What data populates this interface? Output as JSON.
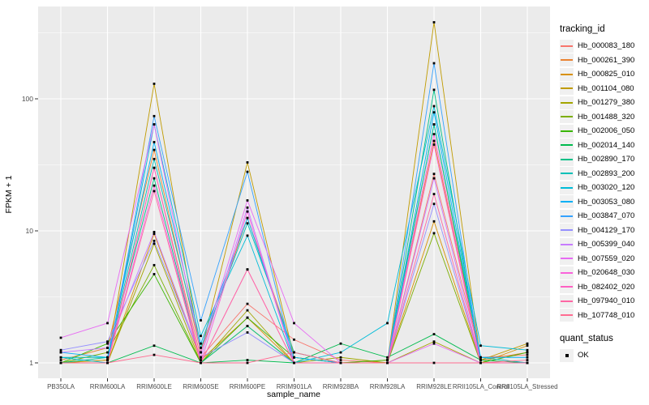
{
  "chart_data": {
    "type": "line",
    "title": "",
    "xlabel": "sample_name",
    "ylabel": "FPKM + 1",
    "y_scale": "log10",
    "y_ticks": [
      "1",
      "10",
      "100"
    ],
    "y_tick_values": [
      1,
      10,
      100
    ],
    "y_minor_values": [
      3.162,
      31.62,
      316.2
    ],
    "ylim": [
      0.78,
      450
    ],
    "grid": true,
    "panel_bg": "#EBEBEB",
    "grid_color": "#FFFFFF",
    "axis_text_color": "#4D4D4D",
    "tick_mark_color": "#333333",
    "point_marker": "black-square",
    "legend_position": "right",
    "categories": [
      "PB350LA",
      "RRIM600LA",
      "RRIM600LE",
      "RRIM600SE",
      "RRIM600PE",
      "RRIM901LA",
      "RRIM928BA",
      "RRIM928LA",
      "RRIM928LE",
      "RRII105LA_Control",
      "RRII105LA_Stressed"
    ],
    "series": [
      {
        "name": "Hb_000083_180",
        "color": "#F8766D",
        "values": [
          1.0,
          1.05,
          30,
          1.1,
          2.8,
          1.5,
          1.05,
          1.0,
          27,
          1.1,
          1.15
        ]
      },
      {
        "name": "Hb_000261_390",
        "color": "#EA8331",
        "values": [
          1.05,
          1.3,
          41,
          1.2,
          12.5,
          1.2,
          1.0,
          1.05,
          48,
          1.05,
          1.2
        ]
      },
      {
        "name": "Hb_000825_010",
        "color": "#D89000",
        "values": [
          1.0,
          1.0,
          9.5,
          1.05,
          2.2,
          1.0,
          1.0,
          1.0,
          11.8,
          1.0,
          1.35
        ]
      },
      {
        "name": "Hb_001104_080",
        "color": "#C09B00",
        "values": [
          1.0,
          1.05,
          130,
          1.2,
          33,
          1.1,
          1.0,
          1.0,
          380,
          1.05,
          1.4
        ]
      },
      {
        "name": "Hb_001279_380",
        "color": "#A3A500",
        "values": [
          1.0,
          1.0,
          8.0,
          1.0,
          2.5,
          1.0,
          1.1,
          1.0,
          1.45,
          1.0,
          1.0
        ]
      },
      {
        "name": "Hb_001488_320",
        "color": "#7CAE00",
        "values": [
          1.0,
          1.2,
          5.5,
          1.0,
          1.9,
          1.0,
          1.0,
          1.0,
          9.6,
          1.0,
          1.0
        ]
      },
      {
        "name": "Hb_002006_050",
        "color": "#39B600",
        "values": [
          1.0,
          1.4,
          4.7,
          1.0,
          2.2,
          1.1,
          1.0,
          1.05,
          64,
          1.0,
          1.2
        ]
      },
      {
        "name": "Hb_002014_140",
        "color": "#00BB4E",
        "values": [
          1.0,
          1.0,
          1.35,
          1.0,
          1.05,
          1.0,
          1.4,
          1.1,
          1.65,
          1.05,
          1.0
        ]
      },
      {
        "name": "Hb_002890_170",
        "color": "#00C087",
        "values": [
          1.0,
          1.1,
          25,
          1.0,
          1.9,
          1.0,
          1.0,
          1.0,
          117,
          1.0,
          1.0
        ]
      },
      {
        "name": "Hb_002893_200",
        "color": "#00C0B8",
        "values": [
          1.1,
          1.1,
          35,
          1.3,
          11.4,
          1.2,
          1.0,
          1.0,
          64,
          1.1,
          1.0
        ]
      },
      {
        "name": "Hb_003020_120",
        "color": "#00BCD8",
        "values": [
          1.1,
          1.0,
          64,
          1.6,
          9.2,
          1.0,
          1.2,
          2.0,
          88,
          1.35,
          1.25
        ]
      },
      {
        "name": "Hb_003053_080",
        "color": "#00B0F6",
        "values": [
          1.2,
          1.1,
          47,
          1.4,
          12.5,
          1.1,
          1.0,
          1.0,
          79,
          1.1,
          1.1
        ]
      },
      {
        "name": "Hb_003847_070",
        "color": "#35A2FF",
        "values": [
          1.0,
          1.0,
          74,
          2.1,
          28,
          1.0,
          1.0,
          1.0,
          186,
          1.0,
          1.0
        ]
      },
      {
        "name": "Hb_004129_170",
        "color": "#9590FF",
        "values": [
          1.25,
          1.45,
          8.4,
          1.1,
          1.7,
          1.0,
          1.0,
          1.0,
          16,
          1.0,
          1.0
        ]
      },
      {
        "name": "Hb_005399_040",
        "color": "#C77CFF",
        "values": [
          1.2,
          1.3,
          9.8,
          1.1,
          15,
          1.0,
          1.0,
          1.0,
          25,
          1.0,
          1.0
        ]
      },
      {
        "name": "Hb_007559_020",
        "color": "#E76BF3",
        "values": [
          1.55,
          2.0,
          64,
          1.2,
          17,
          2.0,
          1.0,
          1.0,
          1.4,
          1.0,
          1.0
        ]
      },
      {
        "name": "Hb_020648_030",
        "color": "#FA62DB",
        "values": [
          1.0,
          1.0,
          22,
          1.0,
          14,
          1.0,
          1.0,
          1.0,
          54,
          1.0,
          1.0
        ]
      },
      {
        "name": "Hb_082402_020",
        "color": "#FF61C3",
        "values": [
          1.0,
          1.0,
          30,
          1.0,
          5.1,
          1.0,
          1.0,
          1.0,
          45,
          1.0,
          1.0
        ]
      },
      {
        "name": "Hb_097940_010",
        "color": "#FF67A4",
        "values": [
          1.0,
          1.0,
          20,
          1.0,
          5.1,
          1.0,
          1.0,
          1.0,
          19,
          1.0,
          1.0
        ]
      },
      {
        "name": "Hb_107748_010",
        "color": "#FF6C91",
        "values": [
          1.0,
          1.0,
          1.15,
          1.0,
          1.0,
          1.2,
          1.0,
          1.0,
          1.0,
          1.0,
          1.05
        ]
      }
    ],
    "legend": {
      "color_title": "tracking_id",
      "shape_title": "quant_status",
      "shape_items": [
        {
          "label": "OK",
          "marker": "black-square"
        }
      ]
    }
  }
}
